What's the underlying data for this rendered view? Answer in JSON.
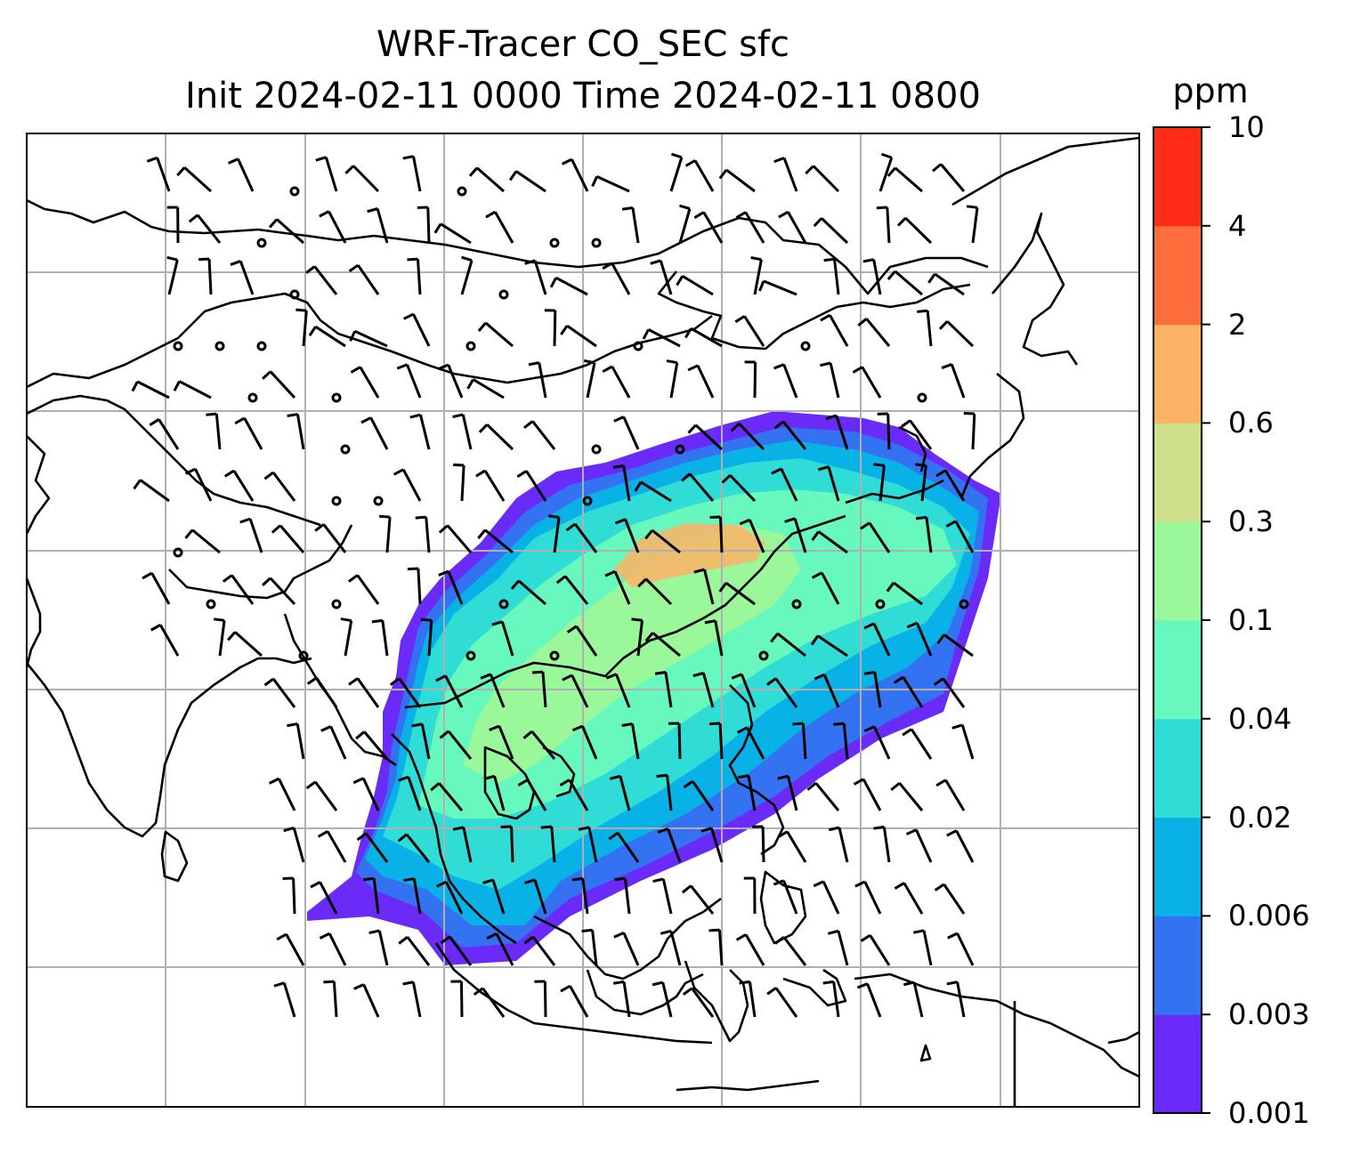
{
  "title": {
    "line1": "WRF-Tracer CO_SEC sfc",
    "line2": "Init 2024-02-11 0000 Time 2024-02-11 0800"
  },
  "colorbar": {
    "unit": "ppm",
    "ticks": [
      "0.001",
      "0.003",
      "0.006",
      "0.02",
      "0.04",
      "0.1",
      "0.3",
      "0.6",
      "2",
      "4",
      "10"
    ],
    "colors": [
      "#6a2bf9",
      "#3373f2",
      "#09b2e6",
      "#2fdcd6",
      "#66f8bc",
      "#9af79a",
      "#cfe08a",
      "#fdb366",
      "#fd6e3c",
      "#ff2d18"
    ]
  },
  "map": {
    "field_colors": {
      "outer": "#6a2bf9",
      "low": "#3373f2",
      "mid_low": "#09b2e6",
      "mid": "#2fdcd6",
      "mid_high": "#66f8bc",
      "high": "#9af79a",
      "peak": "#fdb366"
    },
    "gridline_color": "#b0b0b0",
    "coastline_color": "#000000"
  }
}
